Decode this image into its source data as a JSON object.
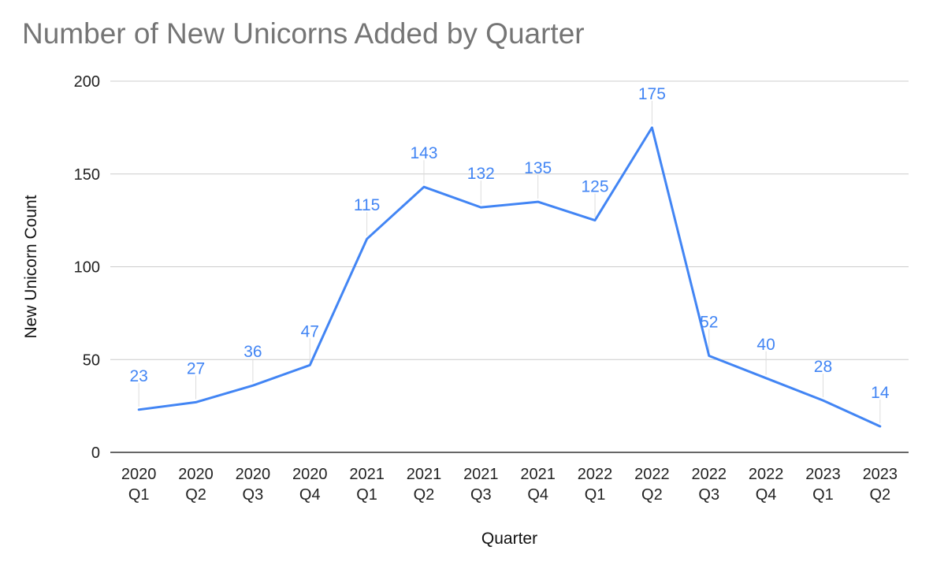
{
  "chart_data": {
    "type": "line",
    "title": "Number of New Unicorns Added by Quarter",
    "xlabel": "Quarter",
    "ylabel": "New Unicorn Count",
    "categories": [
      [
        "2020",
        "Q1"
      ],
      [
        "2020",
        "Q2"
      ],
      [
        "2020",
        "Q3"
      ],
      [
        "2020",
        "Q4"
      ],
      [
        "2021",
        "Q1"
      ],
      [
        "2021",
        "Q2"
      ],
      [
        "2021",
        "Q3"
      ],
      [
        "2021",
        "Q4"
      ],
      [
        "2022",
        "Q1"
      ],
      [
        "2022",
        "Q2"
      ],
      [
        "2022",
        "Q3"
      ],
      [
        "2022",
        "Q4"
      ],
      [
        "2023",
        "Q1"
      ],
      [
        "2023",
        "Q2"
      ]
    ],
    "values": [
      23,
      27,
      36,
      47,
      115,
      143,
      132,
      135,
      125,
      175,
      52,
      40,
      28,
      14
    ],
    "ylim": [
      0,
      200
    ],
    "yticks": [
      0,
      50,
      100,
      150,
      200
    ],
    "grid": true,
    "legend": "none",
    "colors": {
      "line": "#4285f4",
      "data_label": "#4285f4",
      "grid": "#cccccc",
      "axis": "#333333",
      "title": "#757575",
      "leader": "#dddddd"
    }
  }
}
